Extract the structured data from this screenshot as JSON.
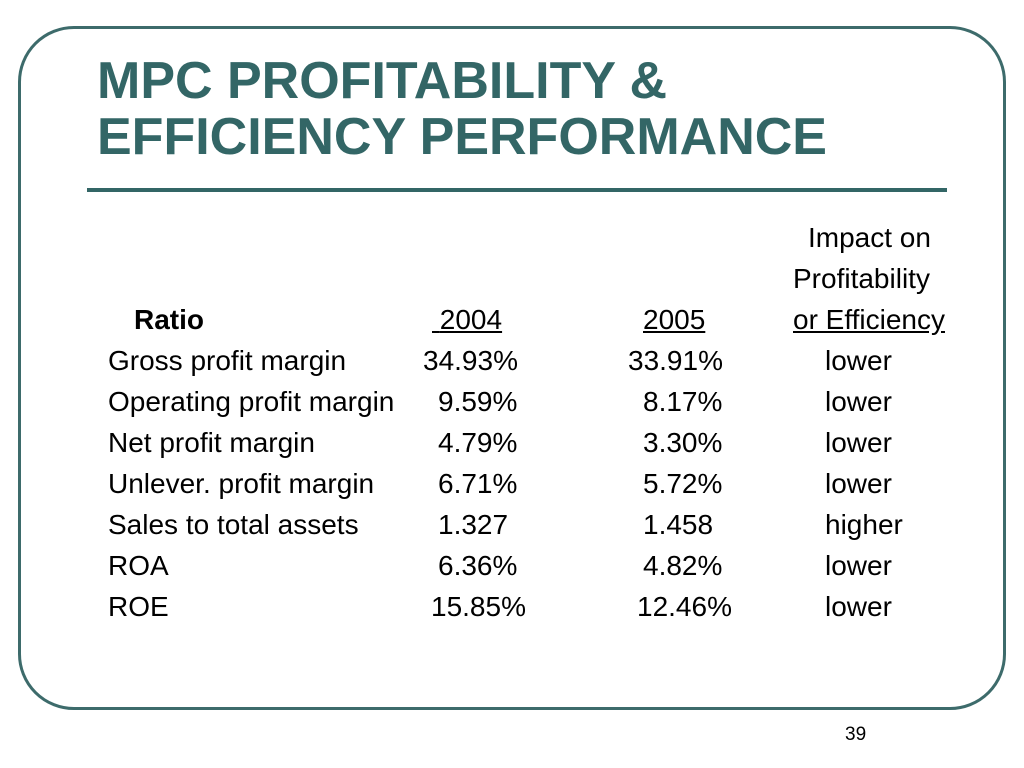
{
  "slide": {
    "title_line1": "MPC PROFITABILITY &",
    "title_line2": "EFFICIENCY PERFORMANCE",
    "page_number": "39"
  },
  "table": {
    "headers": {
      "impact_line1": "Impact on",
      "impact_line2": "Profitability",
      "ratio": "Ratio",
      "year1": "2004",
      "year2": "2005",
      "impact_line3": "or Efficiency"
    },
    "rows": [
      {
        "ratio": "Gross profit margin",
        "v2004": "34.93%",
        "v2005": "33.91%",
        "impact": "lower"
      },
      {
        "ratio": "Operating profit margin",
        "v2004": "9.59%",
        "v2005": "8.17%",
        "impact": "lower"
      },
      {
        "ratio": "Net profit margin",
        "v2004": "4.79%",
        "v2005": "3.30%",
        "impact": "lower"
      },
      {
        "ratio": "Unlever. profit margin",
        "v2004": "6.71%",
        "v2005": "5.72%",
        "impact": "lower"
      },
      {
        "ratio": "Sales to total assets",
        "v2004": "1.327",
        "v2005": "1.458",
        "impact": "higher"
      },
      {
        "ratio": "ROA",
        "v2004": "6.36%",
        "v2005": "4.82%",
        "impact": "lower"
      },
      {
        "ratio": "ROE",
        "v2004": "15.85%",
        "v2005": "12.46%",
        "impact": "lower"
      }
    ]
  },
  "colors": {
    "accent": "#336666",
    "border": "#3d6b6b",
    "text": "#000000",
    "background": "#ffffff"
  }
}
